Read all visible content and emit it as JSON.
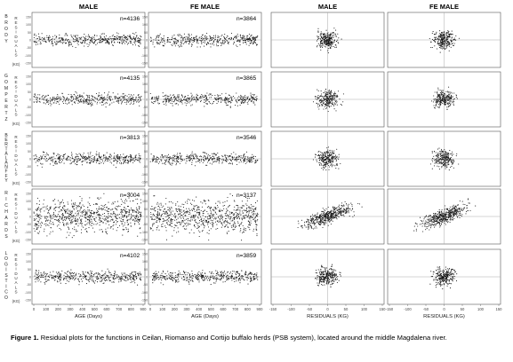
{
  "column_headers": [
    "MALE",
    "FE MALE",
    "MALE",
    "FE MALE"
  ],
  "row_labels": [
    "BRODY",
    "GOMPERTZ",
    "BERTALANFFY",
    "RICHARDS",
    "LOGISTICO"
  ],
  "ylabel_word": "RESIDUALS",
  "ylabel_unit": "(KG)",
  "age_axis": {
    "label": "AGE (Days)",
    "ticks_male": [
      "0",
      "100",
      "200",
      "300",
      "400",
      "500",
      "600",
      "700",
      "800",
      "900"
    ],
    "ticks_female": [
      "0",
      "100",
      "200",
      "300",
      "400",
      "500",
      "600",
      "700",
      "800",
      "900"
    ]
  },
  "residual_axis": {
    "label": "RESIDUALS (KG)",
    "ticks_male": [
      "-150",
      "-100",
      "-50",
      "0",
      "50",
      "100",
      "150"
    ],
    "ticks_female": [
      "-150",
      "-100",
      "-50",
      "0",
      "50",
      "100",
      "150"
    ]
  },
  "caption": {
    "label": "Figure 1.",
    "text": " Residual plots for the functions in Ceilan, Riomanso and Cortijo buffalo herds (PSB system), located around the middle Magdalena river."
  },
  "chart_data": [
    {
      "type": "scatter",
      "function": "BRODY",
      "sex": "MALE",
      "n_label": "n=4136",
      "x": "AGE (Days)",
      "y": "RESIDUALS (KG)",
      "xlim": [
        0,
        900
      ],
      "ylim": [
        -150,
        150
      ]
    },
    {
      "type": "scatter",
      "function": "BRODY",
      "sex": "FE MALE",
      "n_label": "n=3864",
      "x": "AGE (Days)",
      "y": "RESIDUALS (KG)",
      "xlim": [
        0,
        900
      ],
      "ylim": [
        -150,
        150
      ]
    },
    {
      "type": "scatter",
      "function": "GOMPERTZ",
      "sex": "MALE",
      "n_label": "n=4135",
      "x": "AGE (Days)",
      "y": "RESIDUALS (KG)",
      "xlim": [
        0,
        900
      ],
      "ylim": [
        -150,
        150
      ]
    },
    {
      "type": "scatter",
      "function": "GOMPERTZ",
      "sex": "FE MALE",
      "n_label": "n=3865",
      "x": "AGE (Days)",
      "y": "RESIDUALS (KG)",
      "xlim": [
        0,
        900
      ],
      "ylim": [
        -150,
        150
      ]
    },
    {
      "type": "scatter",
      "function": "BERTALANFFY",
      "sex": "MALE",
      "n_label": "n=3813",
      "x": "AGE (Days)",
      "y": "RESIDUALS (KG)",
      "xlim": [
        0,
        900
      ],
      "ylim": [
        -150,
        150
      ]
    },
    {
      "type": "scatter",
      "function": "BERTALANFFY",
      "sex": "FE MALE",
      "n_label": "n=3546",
      "x": "AGE (Days)",
      "y": "RESIDUALS (KG)",
      "xlim": [
        0,
        900
      ],
      "ylim": [
        -150,
        150
      ]
    },
    {
      "type": "scatter",
      "function": "RICHARDS",
      "sex": "MALE",
      "n_label": "n=3004",
      "x": "AGE (Days)",
      "y": "RESIDUALS (KG)",
      "xlim": [
        0,
        900
      ],
      "ylim": [
        -150,
        150
      ]
    },
    {
      "type": "scatter",
      "function": "RICHARDS",
      "sex": "FE MALE",
      "n_label": "n=3137",
      "x": "AGE (Days)",
      "y": "RESIDUALS (KG)",
      "xlim": [
        0,
        900
      ],
      "ylim": [
        -150,
        150
      ]
    },
    {
      "type": "scatter",
      "function": "LOGISTICO",
      "sex": "MALE",
      "n_label": "n=4102",
      "x": "AGE (Days)",
      "y": "RESIDUALS (KG)",
      "xlim": [
        0,
        900
      ],
      "ylim": [
        -150,
        150
      ]
    },
    {
      "type": "scatter",
      "function": "LOGISTICO",
      "sex": "FE MALE",
      "n_label": "n=3859",
      "x": "AGE (Days)",
      "y": "RESIDUALS (KG)",
      "xlim": [
        0,
        900
      ],
      "ylim": [
        -150,
        150
      ]
    }
  ]
}
